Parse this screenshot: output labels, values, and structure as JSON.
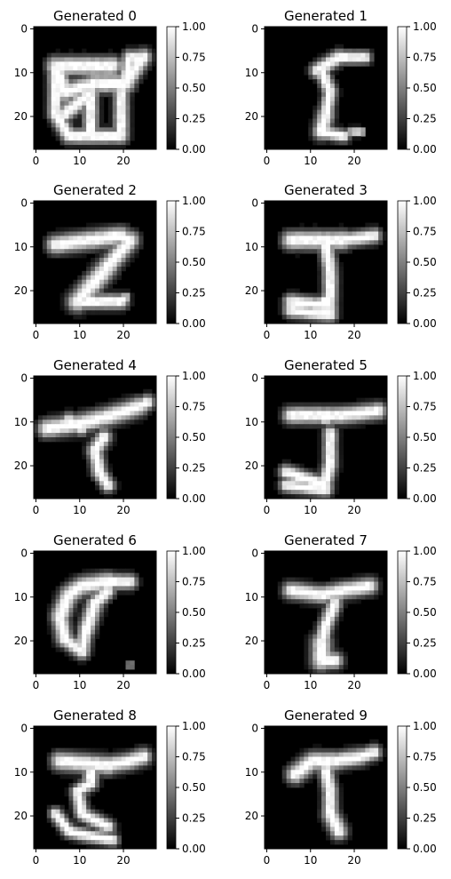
{
  "chart_data": {
    "type": "heatmap",
    "colormap": "gray",
    "image_size": [
      28,
      28
    ],
    "value_range": [
      0,
      1
    ],
    "axis_ticks": [
      0,
      10,
      20
    ],
    "axis_tick_labels": [
      "0",
      "10",
      "20"
    ],
    "colorbar_ticks": [
      0,
      0.25,
      0.5,
      0.75,
      1.0
    ],
    "colorbar_tick_labels": [
      "0.00",
      "0.25",
      "0.50",
      "0.75",
      "1.00"
    ],
    "panels": [
      {
        "title": "Generated 0",
        "strokes": [
          [
            7,
            20,
            13,
            15,
            1.8
          ],
          [
            5,
            9,
            18,
            9,
            2
          ],
          [
            5,
            9,
            7,
            15,
            2
          ],
          [
            7,
            15,
            14,
            13,
            2
          ],
          [
            14,
            13,
            21,
            13,
            2
          ],
          [
            21,
            13,
            25,
            7,
            1.8
          ],
          [
            25,
            7,
            22,
            7,
            1.5
          ],
          [
            22,
            7,
            21,
            13,
            1.6
          ],
          [
            13,
            15,
            13,
            24,
            1.6
          ],
          [
            5,
            9,
            5,
            20,
            1.6
          ],
          [
            5,
            20,
            8,
            25,
            1.6
          ],
          [
            8,
            25,
            20,
            25,
            1.6
          ],
          [
            20,
            25,
            20,
            15,
            1.6
          ]
        ]
      },
      {
        "title": "Generated 1",
        "strokes": [
          [
            12,
            10,
            17,
            7,
            1.6
          ],
          [
            17,
            7,
            23,
            7,
            1.4
          ],
          [
            13,
            10,
            15,
            15,
            1.5
          ],
          [
            15,
            15,
            14,
            20,
            1.5
          ],
          [
            14,
            20,
            13,
            24,
            1.8
          ],
          [
            13,
            24,
            18,
            25,
            1.4
          ],
          [
            20,
            24,
            22,
            24,
            0.9
          ]
        ]
      },
      {
        "title": "Generated 2",
        "strokes": [
          [
            5,
            10,
            20,
            8,
            2
          ],
          [
            20,
            8,
            22,
            9,
            1.5
          ],
          [
            22,
            9,
            17,
            15,
            2
          ],
          [
            17,
            15,
            10,
            23,
            2.2
          ],
          [
            10,
            23,
            20,
            23,
            1.6
          ],
          [
            20,
            23,
            21,
            22,
            1
          ]
        ]
      },
      {
        "title": "Generated 3",
        "strokes": [
          [
            6,
            9,
            18,
            9,
            2
          ],
          [
            18,
            9,
            25,
            8,
            1.6
          ],
          [
            14,
            10,
            15,
            16,
            1.6
          ],
          [
            15,
            16,
            15,
            22,
            1.6
          ],
          [
            15,
            22,
            12,
            24,
            1.4
          ],
          [
            6,
            23,
            15,
            24,
            1.6
          ],
          [
            6,
            25,
            15,
            26,
            1.6
          ]
        ]
      },
      {
        "title": "Generated 4",
        "strokes": [
          [
            3,
            12,
            10,
            11,
            2
          ],
          [
            10,
            11,
            18,
            9,
            2
          ],
          [
            18,
            9,
            24,
            7,
            2
          ],
          [
            24,
            7,
            26,
            6,
            1.6
          ],
          [
            8,
            10,
            11,
            12,
            1.5
          ],
          [
            16,
            14,
            14,
            17,
            1.7
          ],
          [
            14,
            17,
            15,
            22,
            1.6
          ],
          [
            15,
            22,
            17,
            25,
            1.5
          ]
        ]
      },
      {
        "title": "Generated 5",
        "strokes": [
          [
            6,
            9,
            18,
            9,
            1.8
          ],
          [
            18,
            9,
            26,
            8,
            1.8
          ],
          [
            13,
            9,
            14,
            10,
            1.2
          ],
          [
            15,
            13,
            15,
            20,
            1.5
          ],
          [
            15,
            20,
            14,
            24,
            1.6
          ],
          [
            5,
            22,
            14,
            25,
            1.6
          ],
          [
            5,
            25,
            14,
            26,
            1.5
          ]
        ]
      },
      {
        "title": "Generated 6",
        "strokes": [
          [
            8,
            10,
            11,
            8,
            2
          ],
          [
            11,
            8,
            17,
            7,
            2
          ],
          [
            17,
            7,
            22,
            7,
            1.6
          ],
          [
            8,
            10,
            6,
            15,
            2
          ],
          [
            6,
            15,
            7,
            20,
            1.8
          ],
          [
            7,
            20,
            11,
            23,
            1.6
          ],
          [
            11,
            23,
            12,
            18,
            1.6
          ],
          [
            12,
            18,
            14,
            12,
            1.8
          ],
          [
            14,
            12,
            17,
            9,
            1.6
          ],
          [
            22,
            26,
            22,
            26,
            0.7
          ]
        ]
      },
      {
        "title": "Generated 7",
        "strokes": [
          [
            6,
            9,
            13,
            10,
            1.8
          ],
          [
            13,
            10,
            18,
            9,
            1.8
          ],
          [
            18,
            9,
            24,
            8,
            1.8
          ],
          [
            16,
            12,
            14,
            17,
            1.6
          ],
          [
            14,
            17,
            13,
            21,
            1.6
          ],
          [
            13,
            21,
            13,
            25,
            2.2
          ],
          [
            13,
            25,
            16,
            25,
            1.8
          ]
        ]
      },
      {
        "title": "Generated 8",
        "strokes": [
          [
            6,
            8,
            17,
            9,
            2
          ],
          [
            17,
            9,
            22,
            8,
            1.8
          ],
          [
            22,
            8,
            25,
            7,
            1.8
          ],
          [
            13,
            10,
            13,
            13,
            1.6
          ],
          [
            13,
            13,
            10,
            15,
            1.5
          ],
          [
            10,
            15,
            11,
            20,
            1.5
          ],
          [
            11,
            20,
            17,
            23,
            1.5
          ],
          [
            5,
            20,
            8,
            24,
            1.4
          ],
          [
            8,
            24,
            12,
            25,
            1.4
          ],
          [
            12,
            25,
            18,
            26,
            1.4
          ]
        ]
      },
      {
        "title": "Generated 9",
        "strokes": [
          [
            7,
            11,
            11,
            8,
            2
          ],
          [
            11,
            8,
            16,
            8,
            2
          ],
          [
            16,
            8,
            22,
            7,
            1.8
          ],
          [
            22,
            7,
            25,
            6,
            1.6
          ],
          [
            14,
            10,
            15,
            15,
            1.6
          ],
          [
            15,
            15,
            15,
            20,
            1.6
          ],
          [
            15,
            20,
            17,
            24,
            1.8
          ]
        ]
      }
    ]
  }
}
